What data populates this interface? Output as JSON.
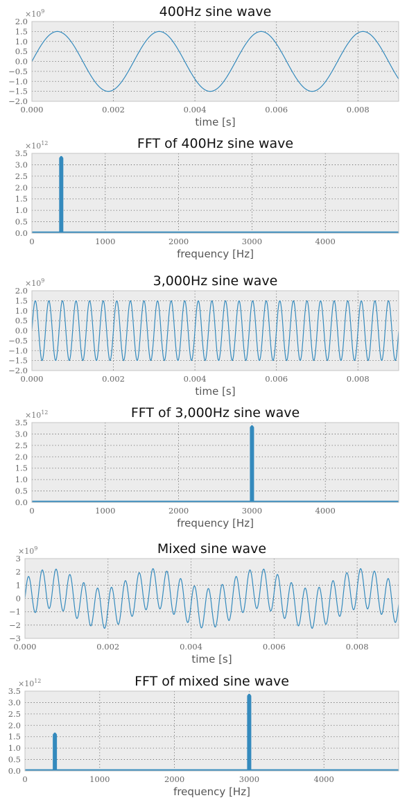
{
  "colors": {
    "line": "#348abd",
    "plot_background": "#ececec",
    "frame": "#c4c4c4",
    "grid": "#555555"
  },
  "chart_data": [
    {
      "type": "line",
      "title": "400Hz sine wave",
      "xlabel": "time [s]",
      "ylabel": "",
      "y_scale_note": "×10^9",
      "xlim": [
        0,
        0.009
      ],
      "ylim": [
        -2.0,
        2.0
      ],
      "xticks": [
        0.0,
        0.002,
        0.004,
        0.006,
        0.008
      ],
      "xtick_labels": [
        "0.000",
        "0.002",
        "0.004",
        "0.006",
        "0.008"
      ],
      "yticks": [
        -2.0,
        -1.5,
        -1.0,
        -0.5,
        0.0,
        0.5,
        1.0,
        1.5,
        2.0
      ],
      "ytick_labels": [
        "−2.0",
        "−1.5",
        "−1.0",
        "−0.5",
        "0.0",
        "0.5",
        "1.0",
        "1.5",
        "2.0"
      ],
      "grid": true,
      "series": [
        {
          "kind": "sine",
          "components": [
            {
              "amplitude": 1.5,
              "frequency_hz": 400
            }
          ]
        }
      ]
    },
    {
      "type": "line",
      "title": "FFT of 400Hz sine wave",
      "xlabel": "frequency [Hz]",
      "ylabel": "",
      "y_scale_note": "×10^12",
      "xlim": [
        0,
        5000
      ],
      "ylim": [
        0.0,
        3.5
      ],
      "xticks": [
        0,
        1000,
        2000,
        3000,
        4000
      ],
      "xtick_labels": [
        "0",
        "1000",
        "2000",
        "3000",
        "4000"
      ],
      "yticks": [
        0.0,
        0.5,
        1.0,
        1.5,
        2.0,
        2.5,
        3.0,
        3.5
      ],
      "ytick_labels": [
        "0.0",
        "0.5",
        "1.0",
        "1.5",
        "2.0",
        "2.5",
        "3.0",
        "3.5"
      ],
      "grid": true,
      "series": [
        {
          "kind": "spectrum",
          "baseline": 0.04,
          "peaks": [
            {
              "frequency_hz": 400,
              "magnitude": 3.35
            }
          ]
        }
      ]
    },
    {
      "type": "line",
      "title": "3,000Hz sine wave",
      "xlabel": "time [s]",
      "ylabel": "",
      "y_scale_note": "×10^9",
      "xlim": [
        0,
        0.009
      ],
      "ylim": [
        -2.0,
        2.0
      ],
      "xticks": [
        0.0,
        0.002,
        0.004,
        0.006,
        0.008
      ],
      "xtick_labels": [
        "0.000",
        "0.002",
        "0.004",
        "0.006",
        "0.008"
      ],
      "yticks": [
        -2.0,
        -1.5,
        -1.0,
        -0.5,
        0.0,
        0.5,
        1.0,
        1.5,
        2.0
      ],
      "ytick_labels": [
        "−2.0",
        "−1.5",
        "−1.0",
        "−0.5",
        "0.0",
        "0.5",
        "1.0",
        "1.5",
        "2.0"
      ],
      "grid": true,
      "series": [
        {
          "kind": "sine",
          "components": [
            {
              "amplitude": 1.5,
              "frequency_hz": 3000
            }
          ]
        }
      ]
    },
    {
      "type": "line",
      "title": "FFT of 3,000Hz sine wave",
      "xlabel": "frequency [Hz]",
      "ylabel": "",
      "y_scale_note": "×10^12",
      "xlim": [
        0,
        5000
      ],
      "ylim": [
        0.0,
        3.5
      ],
      "xticks": [
        0,
        1000,
        2000,
        3000,
        4000
      ],
      "xtick_labels": [
        "0",
        "1000",
        "2000",
        "3000",
        "4000"
      ],
      "yticks": [
        0.0,
        0.5,
        1.0,
        1.5,
        2.0,
        2.5,
        3.0,
        3.5
      ],
      "ytick_labels": [
        "0.0",
        "0.5",
        "1.0",
        "1.5",
        "2.0",
        "2.5",
        "3.0",
        "3.5"
      ],
      "grid": true,
      "series": [
        {
          "kind": "spectrum",
          "baseline": 0.04,
          "peaks": [
            {
              "frequency_hz": 3000,
              "magnitude": 3.35
            }
          ]
        }
      ]
    },
    {
      "type": "line",
      "title": "Mixed sine wave",
      "xlabel": "time [s]",
      "ylabel": "",
      "y_scale_note": "×10^9",
      "xlim": [
        0,
        0.009
      ],
      "ylim": [
        -3,
        3
      ],
      "xticks": [
        0.0,
        0.002,
        0.004,
        0.006,
        0.008
      ],
      "xtick_labels": [
        "0.000",
        "0.002",
        "0.004",
        "0.006",
        "0.008"
      ],
      "yticks": [
        -3,
        -2,
        -1,
        0,
        1,
        2,
        3
      ],
      "ytick_labels": [
        "−3",
        "−2",
        "−1",
        "0",
        "1",
        "2",
        "3"
      ],
      "grid": true,
      "series": [
        {
          "kind": "sine",
          "components": [
            {
              "amplitude": 1.5,
              "frequency_hz": 3000
            },
            {
              "amplitude": 0.75,
              "frequency_hz": 400
            }
          ]
        }
      ]
    },
    {
      "type": "line",
      "title": "FFT of mixed sine wave",
      "xlabel": "frequency [Hz]",
      "ylabel": "",
      "y_scale_note": "×10^12",
      "xlim": [
        0,
        5000
      ],
      "ylim": [
        0.0,
        3.5
      ],
      "xticks": [
        0,
        1000,
        2000,
        3000,
        4000
      ],
      "xtick_labels": [
        "0",
        "1000",
        "2000",
        "3000",
        "4000"
      ],
      "yticks": [
        0.0,
        0.5,
        1.0,
        1.5,
        2.0,
        2.5,
        3.0,
        3.5
      ],
      "ytick_labels": [
        "0.0",
        "0.5",
        "1.0",
        "1.5",
        "2.0",
        "2.5",
        "3.0",
        "3.5"
      ],
      "grid": true,
      "series": [
        {
          "kind": "spectrum",
          "baseline": 0.04,
          "peaks": [
            {
              "frequency_hz": 400,
              "magnitude": 1.65
            },
            {
              "frequency_hz": 3000,
              "magnitude": 3.35
            }
          ]
        }
      ]
    }
  ]
}
